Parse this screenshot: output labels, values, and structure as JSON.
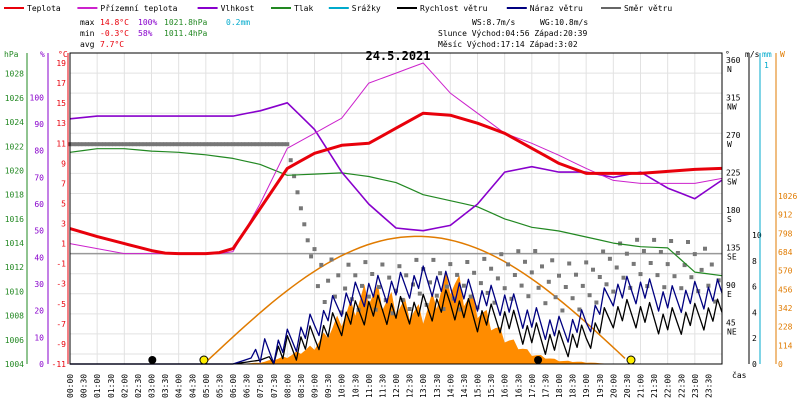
{
  "chart_data": {
    "type": "line",
    "title": "24.5.2021",
    "legend": [
      {
        "label": "Teplota",
        "color": "#e8000b"
      },
      {
        "label": "Přízemní teplota",
        "color": "#cc22cc"
      },
      {
        "label": "Vlhkost",
        "color": "#8800cc"
      },
      {
        "label": "Tlak",
        "color": "#228822"
      },
      {
        "label": "Srážky",
        "color": "#00aacc"
      },
      {
        "label": "Rychlost větru",
        "color": "#000000"
      },
      {
        "label": "Náraz větru",
        "color": "#000080"
      },
      {
        "label": "Směr větru",
        "color": "#666666"
      }
    ],
    "stats": {
      "max_label": "max",
      "max_temp": "14.8°C",
      "max_hum": "100%",
      "max_press": "1021.8hPa",
      "rain": "0.2mm",
      "min_label": "min",
      "min_temp": "-0.3°C",
      "min_hum": "58%",
      "min_press": "1011.4hPa",
      "avg_label": "avg",
      "avg_temp": "7.7°C",
      "ws": "WS:8.7m/s",
      "wg": "WG:10.8m/s",
      "sun": "Slunce Východ:04:56  Západ:20:39",
      "moon": "Měsíc  Východ:17:14  Západ:3:02"
    },
    "axes": {
      "hpa": {
        "unit": "hPa",
        "ticks": [
          "1028",
          "1026",
          "1024",
          "1022",
          "1020",
          "1018",
          "1016",
          "1014",
          "1012",
          "1010",
          "1008",
          "1006",
          "1004"
        ]
      },
      "pct": {
        "unit": "%",
        "ticks": [
          "100",
          "90",
          "80",
          "70",
          "60",
          "50",
          "40",
          "30",
          "20",
          "10",
          "0"
        ]
      },
      "temp": {
        "unit": "°C",
        "ticks": [
          "19",
          "17",
          "15",
          "13",
          "11",
          "9",
          "7",
          "5",
          "3",
          "1",
          "-1",
          "-3",
          "-5",
          "-7",
          "-9",
          "-11"
        ],
        "ylim": [
          -11,
          20
        ]
      },
      "dir": {
        "unit": "°",
        "ticks": [
          "360",
          "315",
          "270",
          "225",
          "180",
          "135",
          "90",
          "45"
        ],
        "labels": [
          "N",
          "NW",
          "W",
          "SW",
          "S",
          "SE",
          "E",
          "NE"
        ]
      },
      "ms": {
        "unit": "m/s",
        "ticks": [
          "10",
          "8",
          "6",
          "4",
          "2",
          "0"
        ]
      },
      "mm": {
        "unit": "mm",
        "ticks": [
          "1",
          "-1"
        ]
      },
      "wm2": {
        "unit": "W",
        "ticks": [
          "1026",
          "912",
          "798",
          "684",
          "570",
          "456",
          "342",
          "228",
          "114",
          "0"
        ]
      },
      "x": {
        "label": "čas",
        "ticks": [
          "00:00",
          "00:30",
          "01:00",
          "01:30",
          "02:00",
          "02:30",
          "03:00",
          "03:30",
          "04:00",
          "04:30",
          "05:00",
          "05:30",
          "06:00",
          "06:30",
          "07:00",
          "07:30",
          "08:00",
          "08:30",
          "09:00",
          "09:30",
          "10:00",
          "10:30",
          "11:00",
          "11:30",
          "12:00",
          "12:30",
          "13:00",
          "13:30",
          "14:00",
          "14:30",
          "15:00",
          "15:30",
          "16:00",
          "16:30",
          "17:00",
          "17:30",
          "18:00",
          "18:30",
          "19:00",
          "19:30",
          "20:00",
          "20:30",
          "21:00",
          "21:30",
          "22:00",
          "22:30",
          "23:00",
          "23:30"
        ]
      }
    },
    "x_hours": [
      0,
      1,
      2,
      3,
      4,
      5,
      6,
      7,
      8,
      9,
      10,
      11,
      12,
      13,
      14,
      15,
      16,
      17,
      18,
      19,
      20,
      21,
      22,
      23,
      24
    ],
    "series": [
      {
        "name": "Teplota",
        "axis": "temp",
        "values": [
          2.5,
          1.7,
          1,
          0.3,
          -0.2,
          -0.3,
          0.5,
          4.5,
          8.5,
          10,
          10.8,
          11,
          12.5,
          14,
          13.8,
          13,
          12,
          10.5,
          9,
          8,
          8,
          8,
          8.2,
          8.4,
          8.5
        ]
      },
      {
        "name": "Přízemní teplota",
        "axis": "temp",
        "values": [
          1,
          0.5,
          0,
          -0.5,
          -0.7,
          -0.8,
          0.2,
          5,
          10.5,
          12,
          13.5,
          17,
          18,
          19,
          16,
          14,
          12,
          11,
          9.8,
          8.5,
          7.3,
          7,
          7,
          7,
          7.5
        ]
      },
      {
        "name": "Vlhkost",
        "axis": "pct",
        "values": [
          92,
          93,
          93,
          93,
          93,
          93,
          93,
          95,
          98,
          88,
          72,
          60,
          51,
          50,
          52,
          60,
          72,
          74,
          72,
          72,
          70,
          72,
          66,
          62,
          69
        ]
      },
      {
        "name": "Tlak",
        "axis": "hpa",
        "values": [
          1021.5,
          1021.8,
          1021.8,
          1021.6,
          1021.5,
          1021.3,
          1021,
          1020.5,
          1019.6,
          1019.7,
          1019.8,
          1019.5,
          1019,
          1018,
          1017.5,
          1017,
          1016,
          1015.3,
          1015,
          1014.5,
          1014,
          1013.7,
          1013.6,
          1011.6,
          1011.3
        ]
      },
      {
        "name": "Rychlost větru",
        "axis": "ms",
        "values": [
          0,
          0,
          0,
          0,
          0,
          0,
          0,
          0.3,
          1.1,
          2,
          3.3,
          4.3,
          4.1,
          4.3,
          4.7,
          3.6,
          3.5,
          2.2,
          1.5,
          2,
          3.9,
          3.9,
          3.2,
          3.6,
          4
        ]
      },
      {
        "name": "Náraz větru",
        "axis": "ms",
        "values": [
          0,
          0,
          0,
          0,
          0,
          0,
          0,
          0.7,
          1.6,
          3,
          4.8,
          5.7,
          5.9,
          6.5,
          6,
          5.2,
          4.8,
          3.4,
          2.6,
          3.2,
          5.6,
          5.8,
          4.9,
          5.3,
          5.5
        ]
      },
      {
        "name": "Sluneční záření",
        "axis": "wm2",
        "values": [
          0,
          0,
          0,
          0,
          0,
          0,
          0,
          8,
          45,
          105,
          280,
          440,
          360,
          300,
          520,
          340,
          160,
          60,
          20,
          10,
          0,
          0,
          0,
          0,
          0
        ]
      },
      {
        "name": "Směr větru",
        "axis": "dir",
        "values": [
          264,
          264,
          264,
          264,
          264,
          264,
          264,
          264,
          264,
          110,
          90,
          95,
          88,
          100,
          92,
          96,
          105,
          110,
          92,
          94,
          115,
          122,
          120,
          118,
          98
        ]
      }
    ],
    "markers": [
      {
        "type": "sunrise",
        "hour": 4.93
      },
      {
        "type": "sunset",
        "hour": 20.65
      },
      {
        "type": "moonset",
        "hour": 3.03
      },
      {
        "type": "moonrise",
        "hour": 17.23
      }
    ]
  }
}
